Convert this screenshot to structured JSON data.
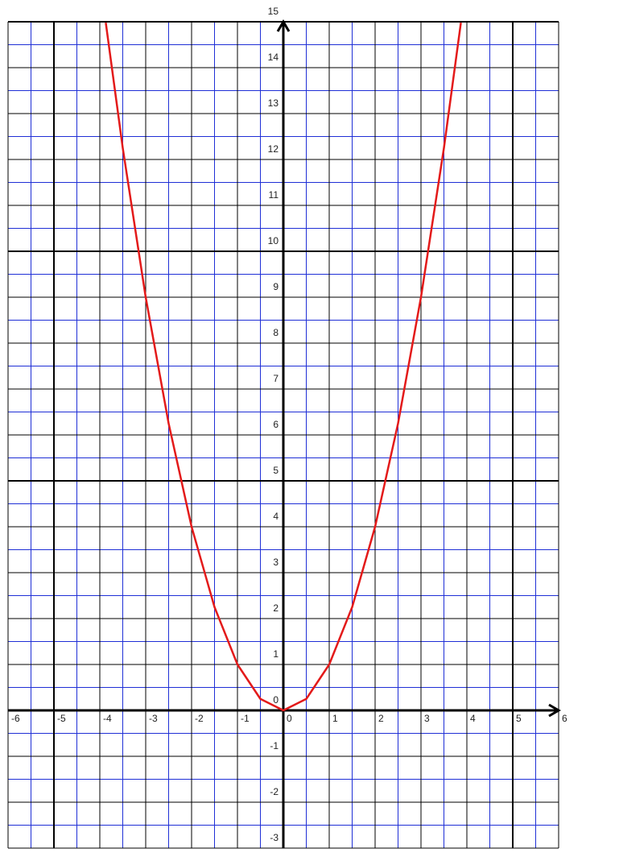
{
  "chart_data": {
    "type": "line",
    "x": [
      -3.87,
      -3.5,
      -3,
      -2.5,
      -2,
      -1.5,
      -1,
      -0.5,
      0,
      0.5,
      1,
      1.5,
      2,
      2.5,
      3,
      3.5,
      3.87
    ],
    "series": [
      {
        "color": "#e31a1a",
        "values": [
          14.98,
          12.25,
          9,
          6.25,
          4,
          2.25,
          1,
          0.25,
          0,
          0.25,
          1,
          2.25,
          4,
          6.25,
          9,
          12.25,
          14.98
        ]
      }
    ],
    "xlim": [
      -6,
      6
    ],
    "ylim": [
      -3,
      15
    ],
    "xticks": [
      -6,
      -5,
      -4,
      -3,
      -2,
      -1,
      0,
      1,
      2,
      3,
      4,
      5,
      6
    ],
    "yticks": [
      -3,
      -2,
      -1,
      0,
      1,
      2,
      3,
      4,
      5,
      6,
      7,
      8,
      9,
      10,
      11,
      12,
      13,
      14,
      15
    ],
    "grid": true
  }
}
